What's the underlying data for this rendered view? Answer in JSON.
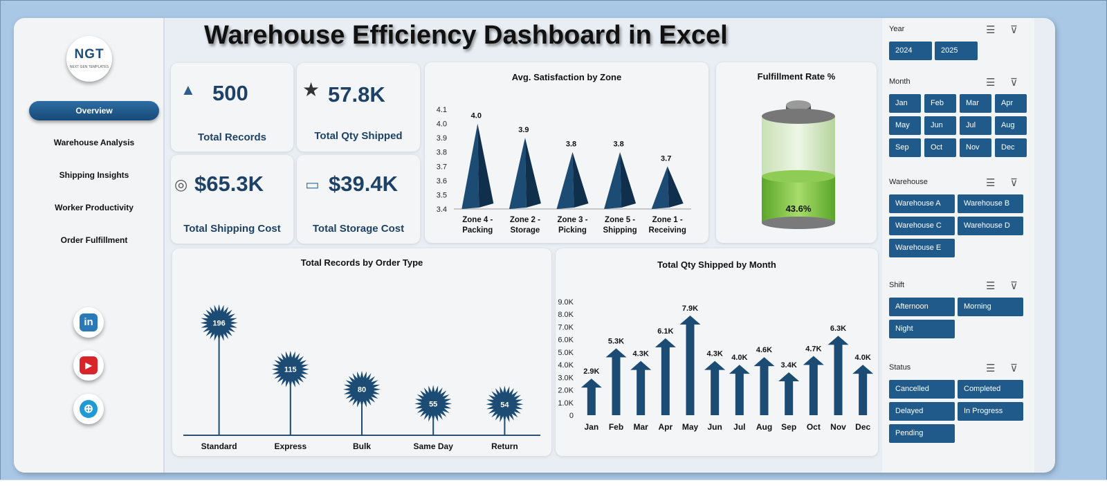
{
  "title": "Warehouse Efficiency Dashboard in Excel",
  "logo": {
    "text": "NGT",
    "subtext": "NEXT GEN TEMPLATES"
  },
  "nav": [
    "Overview",
    "Warehouse Analysis",
    "Shipping Insights",
    "Worker Productivity",
    "Order Fulfillment"
  ],
  "social": {
    "linkedin": "in",
    "youtube": "▶",
    "web": "⊕"
  },
  "colors": {
    "accent": "#1f5a8a",
    "dark": "#1e4266",
    "bar": "#1c4b73",
    "battery_fill": "#7bc043"
  },
  "kpis": [
    {
      "value": "500",
      "label": "Total Records",
      "icon": "boxes-icon",
      "glyph": "▲"
    },
    {
      "value": "57.8K",
      "label": "Total Qty Shipped",
      "icon": "star-icon",
      "glyph": "★"
    },
    {
      "value": "$65.3K",
      "label": "Total Shipping Cost",
      "icon": "coins-icon",
      "glyph": "◎"
    },
    {
      "value": "$39.4K",
      "label": "Total Storage Cost",
      "icon": "cash-icon",
      "glyph": "▭"
    }
  ],
  "fulfillment": {
    "title": "Fulfillment Rate %",
    "label": "43.6%",
    "value": 43.6
  },
  "chart_data": [
    {
      "type": "bar",
      "title": "Avg. Satisfaction by Zone",
      "categories": [
        "Zone 4 - Packing",
        "Zone 2 - Storage",
        "Zone 3 - Picking",
        "Zone 5 - Shipping",
        "Zone 1 - Receiving"
      ],
      "cat_lines": [
        [
          "Zone 4 -",
          "Packing"
        ],
        [
          "Zone 2 -",
          "Storage"
        ],
        [
          "Zone 3 -",
          "Picking"
        ],
        [
          "Zone 5 -",
          "Shipping"
        ],
        [
          "Zone 1 -",
          "Receiving"
        ]
      ],
      "values": [
        4.0,
        3.9,
        3.8,
        3.8,
        3.7
      ],
      "labels": [
        "4.0",
        "3.9",
        "3.8",
        "3.8",
        "3.7"
      ],
      "ylim": [
        3.4,
        4.1
      ],
      "yticks": [
        "3.4",
        "3.5",
        "3.6",
        "3.7",
        "3.8",
        "3.9",
        "4.0",
        "4.1"
      ],
      "grid": false
    },
    {
      "type": "bar",
      "title": "Total Records by Order Type",
      "categories": [
        "Standard",
        "Express",
        "Bulk",
        "Same Day",
        "Return"
      ],
      "values": [
        196,
        115,
        80,
        55,
        54
      ],
      "labels": [
        "196",
        "115",
        "80",
        "55",
        "54"
      ],
      "ylim": [
        0,
        210
      ],
      "grid": false
    },
    {
      "type": "bar",
      "title": "Total Qty Shipped by Month",
      "categories": [
        "Jan",
        "Feb",
        "Mar",
        "Apr",
        "May",
        "Jun",
        "Jul",
        "Aug",
        "Sep",
        "Oct",
        "Nov",
        "Dec"
      ],
      "values": [
        2900,
        5300,
        4300,
        6100,
        7900,
        4300,
        4000,
        4600,
        3400,
        4700,
        6300,
        4000
      ],
      "labels": [
        "2.9K",
        "5.3K",
        "4.3K",
        "6.1K",
        "7.9K",
        "4.3K",
        "4.0K",
        "4.6K",
        "3.4K",
        "4.7K",
        "6.3K",
        "4.0K"
      ],
      "ylim": [
        0,
        9000
      ],
      "yticks": [
        "0",
        "1.0K",
        "2.0K",
        "3.0K",
        "4.0K",
        "5.0K",
        "6.0K",
        "7.0K",
        "8.0K",
        "9.0K"
      ],
      "grid": false
    }
  ],
  "slicers": [
    {
      "title": "Year",
      "cols": 2,
      "items": [
        "2024",
        "2025"
      ]
    },
    {
      "title": "Month",
      "cols": 4,
      "items": [
        "Jan",
        "Feb",
        "Mar",
        "Apr",
        "May",
        "Jun",
        "Jul",
        "Aug",
        "Sep",
        "Oct",
        "Nov",
        "Dec"
      ]
    },
    {
      "title": "Warehouse",
      "cols": 2,
      "items": [
        "Warehouse A",
        "Warehouse B",
        "Warehouse C",
        "Warehouse D",
        "Warehouse E"
      ]
    },
    {
      "title": "Shift",
      "cols": 2,
      "items": [
        "Afternoon",
        "Morning",
        "Night"
      ]
    },
    {
      "title": "Status",
      "cols": 2,
      "items": [
        "Cancelled",
        "Completed",
        "Delayed",
        "In Progress",
        "Pending"
      ]
    }
  ]
}
